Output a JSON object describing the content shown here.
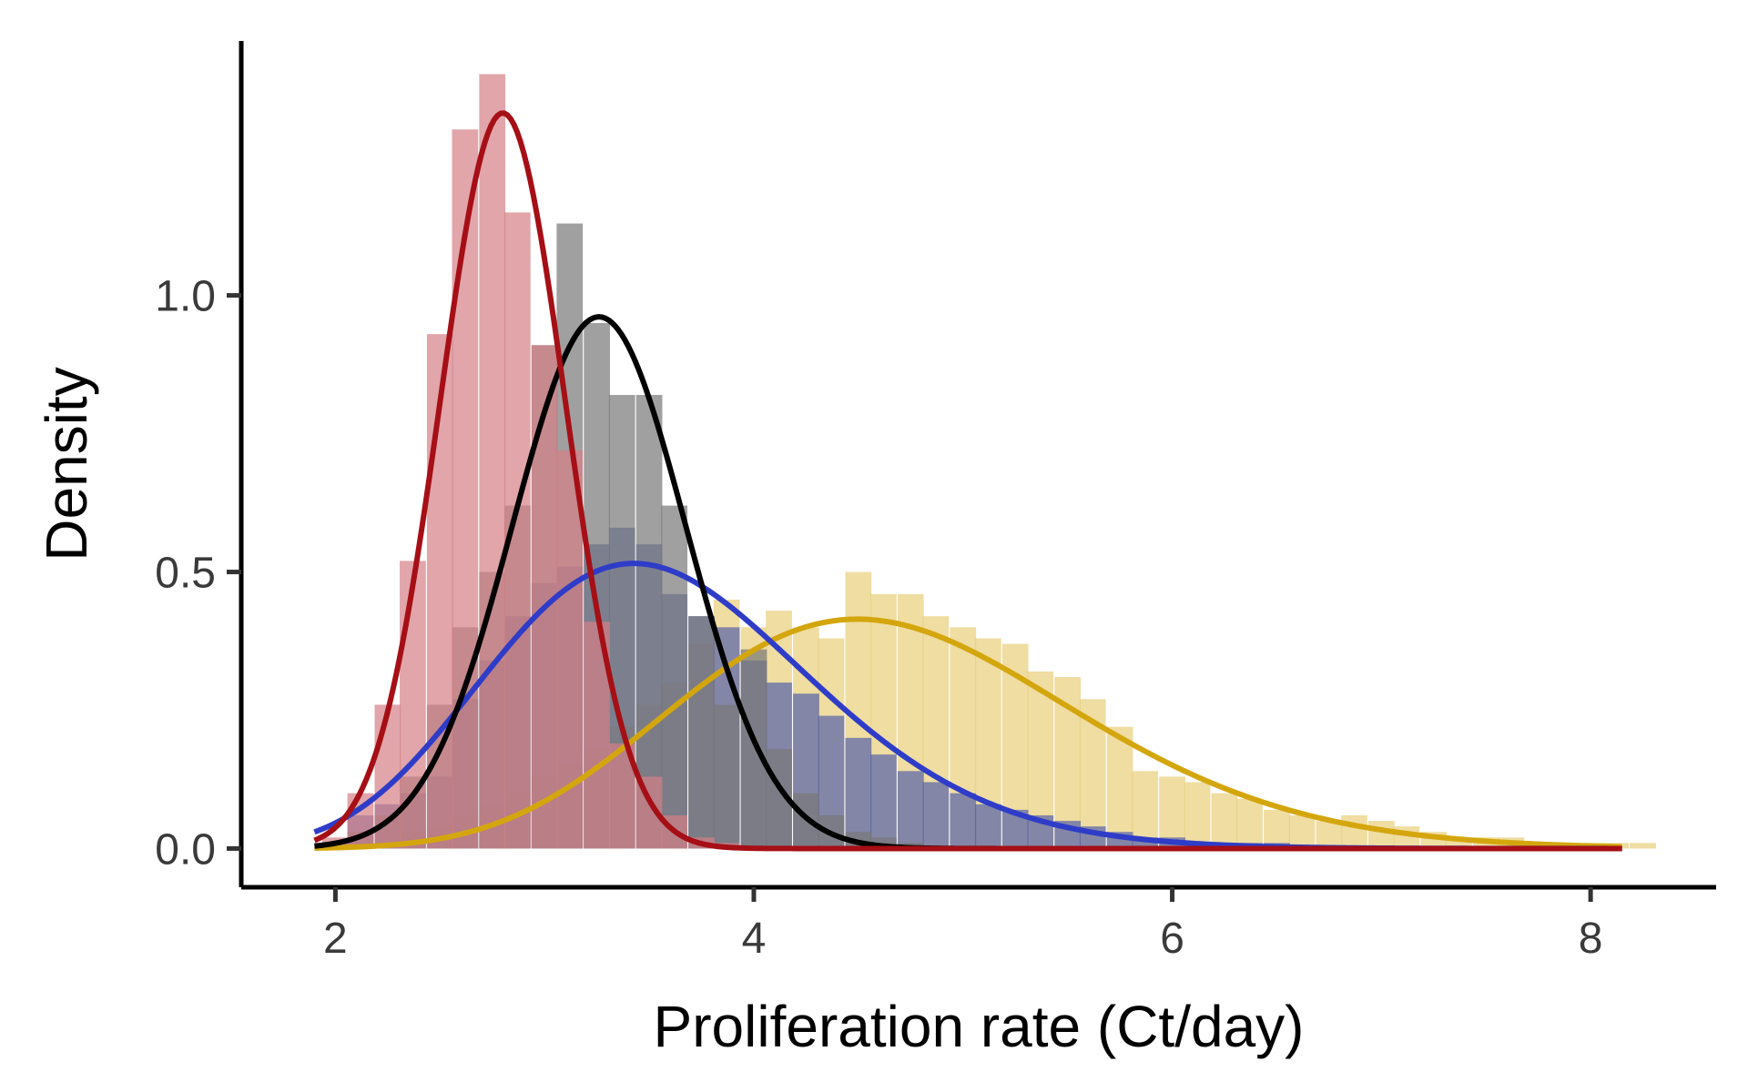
{
  "chart_data": {
    "type": "histogram_density",
    "title": "",
    "xlabel": "Proliferation rate (Ct/day)",
    "ylabel": "Density",
    "xlim": [
      1.55,
      8.6
    ],
    "ylim": [
      -0.07,
      1.46
    ],
    "x_ticks": [
      2,
      4,
      6,
      8
    ],
    "x_tick_labels": [
      "2",
      "4",
      "6",
      "8"
    ],
    "y_ticks": [
      0,
      0.5,
      1
    ],
    "y_tick_labels": [
      "0.0",
      "0.5",
      "1.0"
    ],
    "grid": false,
    "legend": "none",
    "bin_width": 0.125,
    "series": [
      {
        "color": "#D4A60E",
        "fill": "#E8CE7A",
        "hist": {
          "x": [
            2.12,
            2.25,
            2.37,
            2.5,
            2.62,
            2.75,
            2.87,
            3.0,
            3.12,
            3.25,
            3.37,
            3.5,
            3.62,
            3.75,
            3.87,
            4.0,
            4.12,
            4.25,
            4.37,
            4.5,
            4.62,
            4.75,
            4.87,
            5.0,
            5.12,
            5.25,
            5.37,
            5.5,
            5.62,
            5.75,
            5.87,
            6.0,
            6.12,
            6.25,
            6.37,
            6.5,
            6.62,
            6.75,
            6.87,
            7.0,
            7.12,
            7.25,
            7.37,
            7.5,
            7.62,
            7.75,
            7.87,
            8.0,
            8.12,
            8.25
          ],
          "density": [
            0.01,
            0.01,
            0.03,
            0.04,
            0.06,
            0.08,
            0.1,
            0.13,
            0.15,
            0.18,
            0.22,
            0.26,
            0.3,
            0.37,
            0.45,
            0.4,
            0.43,
            0.4,
            0.38,
            0.5,
            0.46,
            0.46,
            0.42,
            0.4,
            0.38,
            0.37,
            0.32,
            0.31,
            0.27,
            0.22,
            0.14,
            0.13,
            0.12,
            0.1,
            0.09,
            0.07,
            0.06,
            0.05,
            0.06,
            0.05,
            0.04,
            0.03,
            0.02,
            0.02,
            0.02,
            0.01,
            0.01,
            0.01,
            0.01,
            0.01
          ]
        },
        "curve": {
          "distribution": "gamma",
          "mean": 4.7,
          "sd": 0.98,
          "x_range": [
            1.9,
            8.15
          ]
        }
      },
      {
        "color": "#2E3CC8",
        "fill": "#5561A8",
        "hist": {
          "x": [
            2.12,
            2.25,
            2.37,
            2.5,
            2.62,
            2.75,
            2.87,
            3.0,
            3.12,
            3.25,
            3.37,
            3.5,
            3.62,
            3.75,
            3.87,
            4.0,
            4.12,
            4.25,
            4.37,
            4.5,
            4.62,
            4.75,
            4.87,
            5.0,
            5.12,
            5.25,
            5.37,
            5.5,
            5.62,
            5.75,
            5.87,
            6.0,
            6.12,
            6.25,
            6.37,
            6.5
          ],
          "density": [
            0.06,
            0.08,
            0.1,
            0.13,
            0.27,
            0.34,
            0.42,
            0.48,
            0.51,
            0.55,
            0.58,
            0.55,
            0.46,
            0.42,
            0.4,
            0.34,
            0.3,
            0.28,
            0.24,
            0.2,
            0.17,
            0.14,
            0.12,
            0.1,
            0.08,
            0.07,
            0.06,
            0.05,
            0.04,
            0.03,
            0.02,
            0.02,
            0.01,
            0.01,
            0.01,
            0.01
          ]
        },
        "curve": {
          "distribution": "gamma",
          "mean": 3.6,
          "sd": 0.79,
          "x_range": [
            1.9,
            8.15
          ]
        }
      },
      {
        "color": "#000000",
        "fill": "#777777",
        "hist": {
          "x": [
            2.0,
            2.12,
            2.25,
            2.37,
            2.5,
            2.62,
            2.75,
            2.87,
            3.0,
            3.12,
            3.25,
            3.37,
            3.5,
            3.62,
            3.75,
            3.87,
            4.0,
            4.12,
            4.25,
            4.37,
            4.5,
            4.62,
            4.75
          ],
          "density": [
            0.01,
            0.03,
            0.06,
            0.13,
            0.26,
            0.4,
            0.5,
            0.62,
            0.91,
            1.13,
            0.95,
            0.82,
            0.82,
            0.62,
            0.42,
            0.26,
            0.36,
            0.18,
            0.1,
            0.06,
            0.03,
            0.02,
            0.01
          ]
        },
        "curve": {
          "distribution": "normal",
          "mean": 3.26,
          "sd": 0.415,
          "x_range": [
            1.9,
            8.15
          ]
        }
      },
      {
        "color": "#A50F15",
        "fill": "#D47F86",
        "hist": {
          "x": [
            2.0,
            2.12,
            2.25,
            2.37,
            2.5,
            2.62,
            2.75,
            2.87,
            3.0,
            3.12,
            3.25,
            3.37,
            3.5,
            3.62,
            3.75,
            3.87
          ],
          "density": [
            0.02,
            0.1,
            0.26,
            0.52,
            0.93,
            1.3,
            1.4,
            1.15,
            0.91,
            0.72,
            0.41,
            0.19,
            0.13,
            0.06,
            0.02,
            0.01
          ]
        },
        "curve": {
          "distribution": "normal",
          "mean": 2.8,
          "sd": 0.3,
          "x_range": [
            1.9,
            8.15
          ]
        }
      }
    ]
  }
}
